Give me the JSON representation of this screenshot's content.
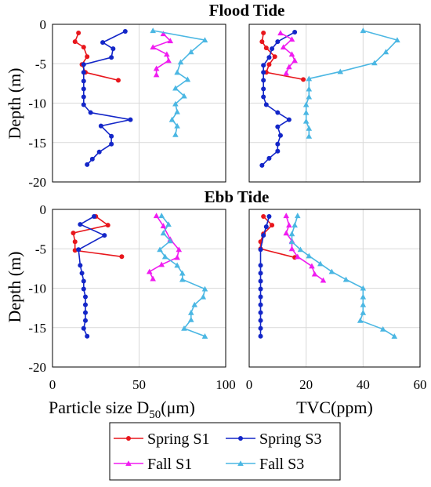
{
  "colors": {
    "spring_s1": "#e8161c",
    "spring_s3": "#1326c8",
    "fall_s1": "#f01cf0",
    "fall_s3": "#4bb7e3",
    "grid": "#d9d9d9",
    "axes": "#000000"
  },
  "chart_data": [
    {
      "type": "line",
      "panel": "flood-d50",
      "title": "Flood Tide",
      "xlabel": "",
      "ylabel": "Depth (m)",
      "xlim": [
        0,
        100
      ],
      "ylim": [
        -20,
        0
      ],
      "xticks": [],
      "yticks": [
        "0",
        "-5",
        "-10",
        "-15",
        "-20"
      ],
      "grid": true,
      "series": [
        {
          "name": "Spring S1",
          "marker": "circle",
          "points": [
            [
              15,
              -1.1
            ],
            [
              13,
              -2.2
            ],
            [
              18,
              -2.9
            ],
            [
              20,
              -4.1
            ],
            [
              17,
              -5.1
            ],
            [
              19,
              -6.1
            ],
            [
              38,
              -7.1
            ]
          ]
        },
        {
          "name": "Spring S3",
          "marker": "circle",
          "points": [
            [
              42,
              -0.9
            ],
            [
              29,
              -2.3
            ],
            [
              35,
              -3.1
            ],
            [
              34,
              -4.2
            ],
            [
              18,
              -5.1
            ],
            [
              18,
              -6.1
            ],
            [
              18,
              -7.2
            ],
            [
              18,
              -8.2
            ],
            [
              18,
              -9.2
            ],
            [
              18,
              -10.2
            ],
            [
              22,
              -11.2
            ],
            [
              45,
              -12.1
            ],
            [
              28,
              -12.9
            ],
            [
              34,
              -14.2
            ],
            [
              34,
              -15.2
            ],
            [
              27,
              -16.2
            ],
            [
              23,
              -17.1
            ],
            [
              20,
              -17.8
            ]
          ]
        },
        {
          "name": "Fall S1",
          "marker": "triangle",
          "points": [
            [
              64,
              -1.2
            ],
            [
              68,
              -2.1
            ],
            [
              58,
              -2.9
            ],
            [
              66,
              -3.8
            ],
            [
              67,
              -4.6
            ],
            [
              60,
              -5.6
            ],
            [
              60,
              -6.4
            ]
          ]
        },
        {
          "name": "Fall S3",
          "marker": "triangle",
          "points": [
            [
              58,
              -0.8
            ],
            [
              88,
              -2.0
            ],
            [
              80,
              -3.5
            ],
            [
              74,
              -4.8
            ],
            [
              72,
              -6.1
            ],
            [
              78,
              -7.0
            ],
            [
              71,
              -8.1
            ],
            [
              76,
              -9.1
            ],
            [
              71,
              -10.1
            ],
            [
              72,
              -11.1
            ],
            [
              69,
              -12.1
            ],
            [
              72,
              -12.9
            ],
            [
              71,
              -14.0
            ]
          ]
        }
      ]
    },
    {
      "type": "line",
      "panel": "flood-tvc",
      "title": "",
      "xlabel": "",
      "ylabel": "",
      "xlim": [
        0,
        60
      ],
      "ylim": [
        -20,
        0
      ],
      "xticks": [],
      "yticks": [],
      "grid": true,
      "series": [
        {
          "name": "Spring S1",
          "marker": "circle",
          "points": [
            [
              5,
              -1.1
            ],
            [
              4.5,
              -2.2
            ],
            [
              6,
              -3.0
            ],
            [
              9,
              -4.1
            ],
            [
              7,
              -5.1
            ],
            [
              6,
              -6.1
            ],
            [
              19,
              -7.0
            ]
          ]
        },
        {
          "name": "Spring S3",
          "marker": "circle",
          "points": [
            [
              16,
              -1.0
            ],
            [
              10,
              -2.2
            ],
            [
              8,
              -3.1
            ],
            [
              7,
              -4.2
            ],
            [
              5,
              -5.2
            ],
            [
              5,
              -6.1
            ],
            [
              5,
              -7.1
            ],
            [
              5,
              -8.2
            ],
            [
              5,
              -9.2
            ],
            [
              6,
              -10.2
            ],
            [
              10,
              -11.2
            ],
            [
              14,
              -12.1
            ],
            [
              10,
              -13.0
            ],
            [
              11,
              -14.1
            ],
            [
              10,
              -15.2
            ],
            [
              10,
              -16.1
            ],
            [
              7,
              -17.0
            ],
            [
              4.5,
              -17.9
            ]
          ]
        },
        {
          "name": "Fall S1",
          "marker": "triangle",
          "points": [
            [
              11,
              -1.1
            ],
            [
              15,
              -1.9
            ],
            [
              12,
              -2.9
            ],
            [
              15,
              -3.8
            ],
            [
              16,
              -4.6
            ],
            [
              14,
              -5.4
            ],
            [
              13,
              -6.2
            ]
          ]
        },
        {
          "name": "Fall S3",
          "marker": "triangle",
          "points": [
            [
              40,
              -0.8
            ],
            [
              52,
              -2.0
            ],
            [
              48,
              -3.5
            ],
            [
              44,
              -4.9
            ],
            [
              32,
              -6.0
            ],
            [
              21,
              -6.9
            ],
            [
              21,
              -8.2
            ],
            [
              21,
              -9.2
            ],
            [
              20,
              -10.2
            ],
            [
              20,
              -11.2
            ],
            [
              20,
              -12.3
            ],
            [
              21,
              -13.2
            ],
            [
              21,
              -14.2
            ]
          ]
        }
      ]
    },
    {
      "type": "line",
      "panel": "ebb-d50",
      "title": "Ebb Tide",
      "xlabel": "Particle size D50(μm)",
      "ylabel": "Depth (m)",
      "xlim": [
        0,
        100
      ],
      "ylim": [
        -20,
        0
      ],
      "xticks": [
        "0",
        "50",
        "100"
      ],
      "yticks": [
        "0",
        "-5",
        "-10",
        "-15",
        "-20"
      ],
      "grid": true,
      "series": [
        {
          "name": "Spring S1",
          "marker": "circle",
          "points": [
            [
              25,
              -0.9
            ],
            [
              32,
              -2.0
            ],
            [
              12,
              -3.0
            ],
            [
              13,
              -4.1
            ],
            [
              13,
              -5.2
            ],
            [
              40,
              -6.0
            ]
          ]
        },
        {
          "name": "Spring S3",
          "marker": "circle",
          "points": [
            [
              24,
              -0.9
            ],
            [
              16,
              -1.9
            ],
            [
              30,
              -3.3
            ],
            [
              15,
              -5.1
            ],
            [
              16,
              -7.1
            ],
            [
              17,
              -8.1
            ],
            [
              18,
              -9.1
            ],
            [
              18,
              -10.1
            ],
            [
              19,
              -11.1
            ],
            [
              19,
              -12.1
            ],
            [
              19,
              -13.1
            ],
            [
              19,
              -14.1
            ],
            [
              18,
              -15.1
            ],
            [
              20,
              -16.1
            ]
          ]
        },
        {
          "name": "Fall S1",
          "marker": "triangle",
          "points": [
            [
              60,
              -0.8
            ],
            [
              64,
              -2.1
            ],
            [
              68,
              -3.8
            ],
            [
              73,
              -5.1
            ],
            [
              72,
              -6.1
            ],
            [
              63,
              -7.0
            ],
            [
              56,
              -7.9
            ],
            [
              58,
              -8.8
            ]
          ]
        },
        {
          "name": "Fall S3",
          "marker": "triangle",
          "points": [
            [
              63,
              -0.8
            ],
            [
              67,
              -1.9
            ],
            [
              64,
              -3.0
            ],
            [
              68,
              -4.0
            ],
            [
              62,
              -5.1
            ],
            [
              65,
              -6.0
            ],
            [
              72,
              -7.1
            ],
            [
              75,
              -8.1
            ],
            [
              75,
              -8.9
            ],
            [
              88,
              -10.1
            ],
            [
              87,
              -11.1
            ],
            [
              82,
              -12.1
            ],
            [
              80,
              -13.1
            ],
            [
              80,
              -14.0
            ],
            [
              76,
              -15.1
            ],
            [
              88,
              -16.1
            ]
          ]
        }
      ]
    },
    {
      "type": "line",
      "panel": "ebb-tvc",
      "title": "",
      "xlabel": "TVC(ppm)",
      "ylabel": "",
      "xlim": [
        0,
        60
      ],
      "ylim": [
        -20,
        0
      ],
      "xticks": [
        "0",
        "20",
        "40",
        "60"
      ],
      "yticks": [],
      "grid": true,
      "series": [
        {
          "name": "Spring S1",
          "marker": "circle",
          "points": [
            [
              5,
              -0.9
            ],
            [
              8,
              -2.0
            ],
            [
              5,
              -3.1
            ],
            [
              4,
              -4.1
            ],
            [
              4,
              -5.0
            ],
            [
              16,
              -6.1
            ]
          ]
        },
        {
          "name": "Spring S3",
          "marker": "circle",
          "points": [
            [
              7,
              -0.9
            ],
            [
              6,
              -2.2
            ],
            [
              5,
              -3.3
            ],
            [
              4,
              -5.1
            ],
            [
              4,
              -7.1
            ],
            [
              4,
              -8.1
            ],
            [
              4,
              -9.1
            ],
            [
              4,
              -10.1
            ],
            [
              4,
              -11.1
            ],
            [
              4,
              -12.1
            ],
            [
              4,
              -13.1
            ],
            [
              4,
              -14.1
            ],
            [
              4,
              -15.1
            ],
            [
              4,
              -16.1
            ]
          ]
        },
        {
          "name": "Fall S1",
          "marker": "triangle",
          "points": [
            [
              13,
              -0.8
            ],
            [
              14,
              -2.0
            ],
            [
              13,
              -3.0
            ],
            [
              15,
              -4.0
            ],
            [
              15,
              -5.0
            ],
            [
              17,
              -6.0
            ],
            [
              22,
              -7.2
            ],
            [
              23,
              -8.2
            ],
            [
              26,
              -9.0
            ]
          ]
        },
        {
          "name": "Fall S3",
          "marker": "triangle",
          "points": [
            [
              17,
              -0.8
            ],
            [
              16,
              -2.0
            ],
            [
              15,
              -3.1
            ],
            [
              15,
              -4.1
            ],
            [
              18,
              -5.1
            ],
            [
              21,
              -5.9
            ],
            [
              25,
              -6.9
            ],
            [
              29,
              -7.9
            ],
            [
              34,
              -8.9
            ],
            [
              40,
              -10.0
            ],
            [
              40,
              -11.1
            ],
            [
              40,
              -12.1
            ],
            [
              40,
              -13.1
            ],
            [
              39,
              -14.1
            ],
            [
              47,
              -15.2
            ],
            [
              51,
              -16.1
            ]
          ]
        }
      ]
    }
  ],
  "legend": {
    "placement": "bottom-center",
    "items": [
      {
        "label": "Spring S1",
        "series": "spring_s1"
      },
      {
        "label": "Spring S3",
        "series": "spring_s3"
      },
      {
        "label": "Fall S1",
        "series": "fall_s1"
      },
      {
        "label": "Fall S3",
        "series": "fall_s3"
      }
    ]
  }
}
